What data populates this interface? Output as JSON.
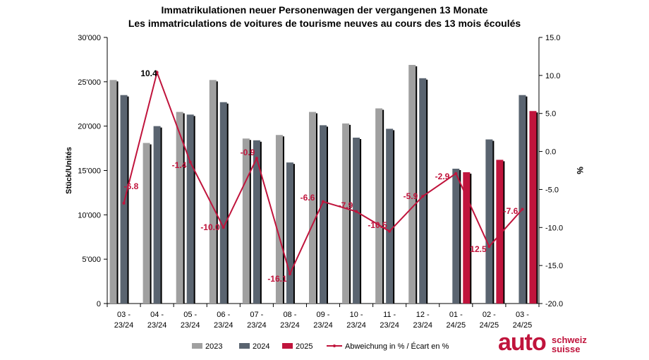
{
  "chart_data": {
    "type": "bar",
    "title": "Immatrikulationen neuer Personenwagen der vergangenen 13 Monate",
    "subtitle": "Les immatriculations de voitures de tourisme neuves au cours des 13 mois écoulés",
    "ylabel": "Stück/Unités",
    "y2label": "%",
    "ylim": [
      0,
      30000
    ],
    "y2lim": [
      -20,
      15
    ],
    "yticks": [
      "0",
      "5'000",
      "10'000",
      "15'000",
      "20'000",
      "25'000",
      "30'000"
    ],
    "y2ticks": [
      "-20.0",
      "-15.0",
      "-10.0",
      "-5.0",
      "0.0",
      "5.0",
      "10.0",
      "15.0"
    ],
    "categories": [
      [
        "03 -",
        "23/24"
      ],
      [
        "04 -",
        "23/24"
      ],
      [
        "05 -",
        "23/24"
      ],
      [
        "06 -",
        "23/24"
      ],
      [
        "07 -",
        "23/24"
      ],
      [
        "08 -",
        "23/24"
      ],
      [
        "09 -",
        "23/24"
      ],
      [
        "10 -",
        "23/24"
      ],
      [
        "11 -",
        "23/24"
      ],
      [
        "12 -",
        "23/24"
      ],
      [
        "01 -",
        "24/25"
      ],
      [
        "02 -",
        "24/25"
      ],
      [
        "03 -",
        "24/25"
      ]
    ],
    "series": [
      {
        "name": "2023",
        "color": "#a0a0a0",
        "values": [
          25200,
          18100,
          21600,
          25200,
          18600,
          19000,
          21600,
          20300,
          22000,
          26900,
          null,
          null,
          null
        ]
      },
      {
        "name": "2024",
        "color": "#5a6470",
        "values": [
          23500,
          20000,
          21300,
          22700,
          18400,
          15900,
          20100,
          18700,
          19700,
          25400,
          15200,
          18500,
          23500
        ]
      },
      {
        "name": "2025",
        "color": "#c0143c",
        "values": [
          null,
          null,
          null,
          null,
          null,
          null,
          null,
          null,
          null,
          null,
          14800,
          16200,
          21700
        ]
      }
    ],
    "line": {
      "name": "Abweichung in % / Écart en %",
      "color": "#c0143c",
      "values": [
        -6.8,
        10.4,
        -1.4,
        -10.0,
        -0.9,
        -16.1,
        -6.6,
        -7.9,
        -10.5,
        -5.9,
        -2.9,
        -12.5,
        -7.6
      ],
      "labels": [
        "-6.8",
        "10.4",
        "-1.4",
        "-10.0",
        "-0.9",
        "-16.1",
        "-6.6",
        "-7.9",
        "-10.5",
        "-5.9",
        "-2.9",
        "-12.5",
        "-7.6"
      ]
    },
    "legend_position": "bottom"
  },
  "logo": {
    "main": "auto",
    "sub1": "schweiz",
    "sub2": "suisse",
    "color": "#c0143c"
  }
}
